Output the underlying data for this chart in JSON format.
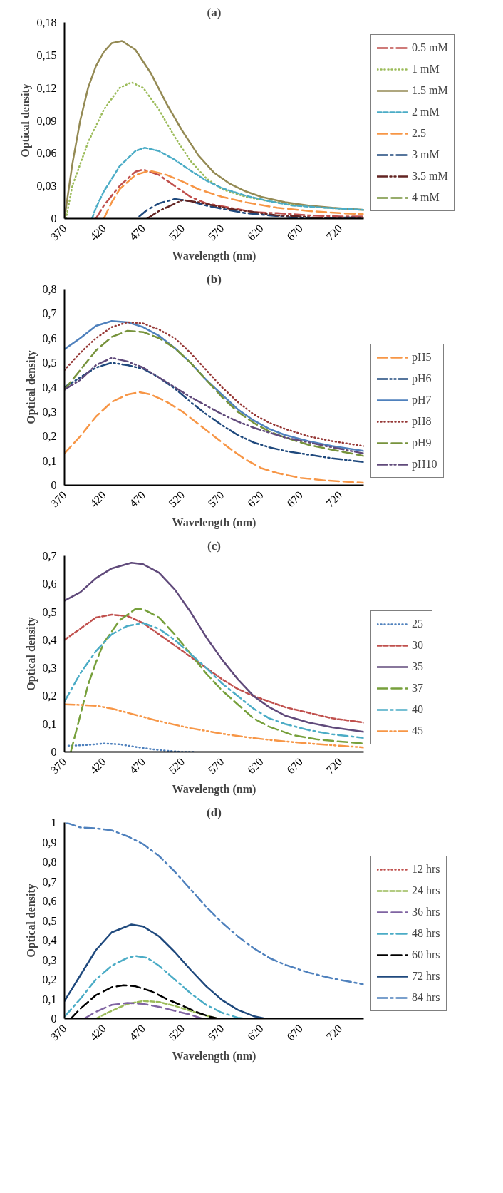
{
  "chart_data": [
    {
      "type": "line",
      "title": "(a)",
      "xlabel": "Wavelength (nm)",
      "ylabel": "Optical density",
      "xlim": [
        370,
        750
      ],
      "xticks": [
        370,
        420,
        470,
        520,
        570,
        620,
        670,
        720
      ],
      "ylim": [
        0,
        0.18
      ],
      "yticks": [
        0,
        {
          "value": 0.03,
          "label": "0,03"
        },
        {
          "value": 0.06,
          "label": "0,06"
        },
        {
          "value": 0.09,
          "label": "0,09"
        },
        {
          "value": 0.12,
          "label": "0,12"
        },
        {
          "value": 0.15,
          "label": "0,15"
        },
        {
          "value": 0.18,
          "label": "0,18"
        }
      ],
      "grid": false,
      "legend": "right",
      "series": [
        {
          "name": "0.5 mM",
          "color": "#c0504d",
          "line_style": "longdashdot",
          "x": [
            410,
            420,
            440,
            460,
            470,
            490,
            510,
            530,
            550,
            580,
            610,
            640,
            680,
            720,
            750
          ],
          "values": [
            0,
            0.012,
            0.03,
            0.043,
            0.045,
            0.04,
            0.03,
            0.02,
            0.014,
            0.01,
            0.006,
            0.005,
            0.003,
            0.002,
            0.002
          ]
        },
        {
          "name": "1 mM",
          "color": "#9bbb59",
          "line_style": "dotted",
          "x": [
            372,
            380,
            400,
            420,
            440,
            455,
            470,
            490,
            510,
            530,
            550,
            570,
            600,
            630,
            660,
            700,
            750
          ],
          "values": [
            0,
            0.03,
            0.07,
            0.1,
            0.12,
            0.125,
            0.12,
            0.1,
            0.075,
            0.053,
            0.037,
            0.027,
            0.02,
            0.016,
            0.013,
            0.01,
            0.008
          ]
        },
        {
          "name": "1.5 mM",
          "color": "#948a54",
          "line_style": "solid",
          "x": [
            370,
            380,
            390,
            400,
            410,
            420,
            430,
            443,
            460,
            480,
            500,
            520,
            540,
            560,
            580,
            600,
            620,
            650,
            680,
            710,
            750
          ],
          "values": [
            0,
            0.05,
            0.09,
            0.12,
            0.14,
            0.153,
            0.161,
            0.163,
            0.155,
            0.133,
            0.105,
            0.08,
            0.058,
            0.042,
            0.032,
            0.025,
            0.02,
            0.015,
            0.012,
            0.01,
            0.008
          ]
        },
        {
          "name": "2 mM",
          "color": "#4bacc6",
          "line_style": "dashed",
          "x": [
            405,
            410,
            420,
            440,
            460,
            472,
            490,
            510,
            530,
            550,
            570,
            600,
            630,
            660,
            700,
            750
          ],
          "values": [
            0,
            0.01,
            0.025,
            0.048,
            0.062,
            0.065,
            0.062,
            0.054,
            0.044,
            0.035,
            0.028,
            0.021,
            0.016,
            0.012,
            0.01,
            0.008
          ]
        },
        {
          "name": "2.5",
          "color": "#f79646",
          "line_style": "longdash",
          "x": [
            420,
            430,
            440,
            460,
            478,
            500,
            520,
            540,
            570,
            600,
            640,
            680,
            720,
            750
          ],
          "values": [
            0,
            0.015,
            0.027,
            0.04,
            0.044,
            0.04,
            0.034,
            0.027,
            0.02,
            0.015,
            0.01,
            0.007,
            0.005,
            0.004
          ]
        },
        {
          "name": "3 mM",
          "color": "#1f497d",
          "line_style": "longdashdot",
          "x": [
            465,
            475,
            490,
            510,
            530,
            550,
            570,
            600,
            630,
            660,
            690,
            720,
            750
          ],
          "values": [
            0.002,
            0.008,
            0.014,
            0.018,
            0.016,
            0.012,
            0.009,
            0.005,
            0.003,
            0.001,
            0,
            0.001,
            0.001
          ]
        },
        {
          "name": "3.5 mM",
          "color": "#632523",
          "line_style": "longdashdotdot",
          "x": [
            475,
            490,
            505,
            520,
            540,
            560,
            580,
            610,
            640,
            670,
            700,
            750
          ],
          "values": [
            0,
            0.007,
            0.012,
            0.017,
            0.015,
            0.012,
            0.009,
            0.006,
            0.003,
            0.002,
            0,
            0
          ]
        },
        {
          "name": "4 mM",
          "color": "#77933c",
          "line_style": "longdash"
        }
      ]
    },
    {
      "type": "line",
      "title": "(b)",
      "xlabel": "Wavelength (nm)",
      "ylabel": "Optical density",
      "xlim": [
        370,
        750
      ],
      "xticks": [
        370,
        420,
        470,
        520,
        570,
        620,
        670,
        720
      ],
      "ylim": [
        0,
        0.8
      ],
      "yticks": [
        0,
        {
          "value": 0.1,
          "label": "0,1"
        },
        {
          "value": 0.2,
          "label": "0,2"
        },
        {
          "value": 0.3,
          "label": "0,3"
        },
        {
          "value": 0.4,
          "label": "0,4"
        },
        {
          "value": 0.5,
          "label": "0,5"
        },
        {
          "value": 0.6,
          "label": "0,6"
        },
        {
          "value": 0.7,
          "label": "0,7"
        },
        {
          "value": 0.8,
          "label": "0,8"
        }
      ],
      "grid": false,
      "legend": "right",
      "x": [
        370,
        390,
        410,
        430,
        450,
        470,
        490,
        510,
        530,
        550,
        570,
        590,
        610,
        630,
        650,
        680,
        710,
        750
      ],
      "series": [
        {
          "name": "pH5",
          "color": "#f79646",
          "line_style": "longdash",
          "x": [
            370,
            390,
            410,
            430,
            450,
            465,
            480,
            500,
            520,
            540,
            560,
            580,
            600,
            620,
            640,
            670,
            700,
            750
          ],
          "values": [
            0.13,
            0.2,
            0.28,
            0.34,
            0.37,
            0.38,
            0.37,
            0.34,
            0.3,
            0.25,
            0.2,
            0.15,
            0.105,
            0.07,
            0.05,
            0.03,
            0.02,
            0.01
          ]
        },
        {
          "name": "pH6",
          "color": "#1f497d",
          "line_style": "longdashdotdot",
          "values": [
            0.4,
            0.44,
            0.48,
            0.5,
            0.49,
            0.475,
            0.44,
            0.395,
            0.34,
            0.29,
            0.245,
            0.205,
            0.175,
            0.155,
            0.14,
            0.125,
            0.11,
            0.095
          ]
        },
        {
          "name": "pH7",
          "color": "#4f81bd",
          "line_style": "solid",
          "values": [
            0.555,
            0.6,
            0.65,
            0.67,
            0.665,
            0.645,
            0.61,
            0.56,
            0.5,
            0.43,
            0.37,
            0.31,
            0.265,
            0.23,
            0.205,
            0.18,
            0.16,
            0.14
          ]
        },
        {
          "name": "pH8",
          "color": "#953735",
          "line_style": "dotted",
          "values": [
            0.47,
            0.54,
            0.6,
            0.645,
            0.665,
            0.66,
            0.635,
            0.6,
            0.54,
            0.47,
            0.4,
            0.34,
            0.29,
            0.255,
            0.23,
            0.2,
            0.18,
            0.16
          ]
        },
        {
          "name": "pH9",
          "color": "#77933c",
          "line_style": "longdash",
          "values": [
            0.39,
            0.47,
            0.55,
            0.605,
            0.63,
            0.625,
            0.6,
            0.56,
            0.5,
            0.43,
            0.36,
            0.3,
            0.255,
            0.22,
            0.195,
            0.165,
            0.145,
            0.12
          ]
        },
        {
          "name": "pH10",
          "color": "#604a7b",
          "line_style": "longdashdotdot",
          "values": [
            0.39,
            0.43,
            0.49,
            0.52,
            0.505,
            0.48,
            0.44,
            0.4,
            0.36,
            0.325,
            0.29,
            0.26,
            0.235,
            0.215,
            0.195,
            0.175,
            0.155,
            0.13
          ]
        }
      ]
    },
    {
      "type": "line",
      "title": "(c)",
      "xlabel": "Wavelength (nm)",
      "ylabel": "Optical density",
      "xlim": [
        370,
        750
      ],
      "xticks": [
        370,
        420,
        470,
        520,
        570,
        620,
        670,
        720
      ],
      "ylim": [
        0,
        0.7
      ],
      "yticks": [
        0,
        {
          "value": 0.1,
          "label": "0,1"
        },
        {
          "value": 0.2,
          "label": "0,2"
        },
        {
          "value": 0.3,
          "label": "0,3"
        },
        {
          "value": 0.4,
          "label": "0,4"
        },
        {
          "value": 0.5,
          "label": "0,5"
        },
        {
          "value": 0.6,
          "label": "0,6"
        },
        {
          "value": 0.7,
          "label": "0,7"
        }
      ],
      "grid": false,
      "legend": "right",
      "series": [
        {
          "name": "25",
          "color": "#4f81bd",
          "line_style": "dotted",
          "x": [
            375,
            400,
            420,
            440,
            460,
            480,
            500,
            520,
            535
          ],
          "values": [
            0.022,
            0.025,
            0.03,
            0.027,
            0.018,
            0.01,
            0.004,
            0,
            0
          ]
        },
        {
          "name": "30",
          "color": "#c0504d",
          "line_style": "dashed",
          "x": [
            370,
            390,
            410,
            430,
            450,
            470,
            490,
            510,
            530,
            550,
            570,
            590,
            610,
            630,
            650,
            680,
            710,
            750
          ],
          "values": [
            0.4,
            0.44,
            0.48,
            0.49,
            0.485,
            0.46,
            0.42,
            0.38,
            0.34,
            0.3,
            0.26,
            0.225,
            0.2,
            0.18,
            0.16,
            0.14,
            0.12,
            0.105
          ]
        },
        {
          "name": "35",
          "color": "#604a7b",
          "line_style": "solid",
          "x": [
            370,
            390,
            410,
            430,
            455,
            470,
            490,
            510,
            530,
            550,
            570,
            590,
            610,
            630,
            650,
            680,
            710,
            750
          ],
          "values": [
            0.54,
            0.57,
            0.62,
            0.655,
            0.675,
            0.67,
            0.64,
            0.58,
            0.5,
            0.41,
            0.33,
            0.26,
            0.2,
            0.16,
            0.13,
            0.105,
            0.088,
            0.072
          ]
        },
        {
          "name": "37",
          "color": "#77a03c",
          "line_style": "longdash",
          "x": [
            378,
            390,
            400,
            410,
            420,
            440,
            460,
            470,
            490,
            510,
            530,
            550,
            570,
            590,
            610,
            630,
            660,
            690,
            720,
            750
          ],
          "values": [
            0,
            0.13,
            0.24,
            0.32,
            0.39,
            0.47,
            0.51,
            0.51,
            0.48,
            0.42,
            0.35,
            0.28,
            0.22,
            0.17,
            0.12,
            0.09,
            0.06,
            0.045,
            0.037,
            0.03
          ]
        },
        {
          "name": "40",
          "color": "#4bacc6",
          "line_style": "longdashdot",
          "x": [
            370,
            390,
            410,
            430,
            450,
            470,
            490,
            510,
            530,
            550,
            570,
            590,
            610,
            630,
            650,
            680,
            710,
            750
          ],
          "values": [
            0.18,
            0.28,
            0.36,
            0.42,
            0.45,
            0.46,
            0.44,
            0.4,
            0.35,
            0.3,
            0.245,
            0.2,
            0.155,
            0.12,
            0.1,
            0.078,
            0.063,
            0.05
          ]
        },
        {
          "name": "45",
          "color": "#f79646",
          "line_style": "longdashdotdot",
          "x": [
            370,
            390,
            410,
            430,
            450,
            470,
            490,
            510,
            530,
            550,
            570,
            600,
            630,
            660,
            690,
            720,
            750
          ],
          "values": [
            0.17,
            0.168,
            0.165,
            0.155,
            0.14,
            0.125,
            0.11,
            0.097,
            0.085,
            0.075,
            0.065,
            0.053,
            0.043,
            0.035,
            0.028,
            0.022,
            0.016
          ]
        }
      ]
    },
    {
      "type": "line",
      "title": "(d)",
      "xlabel": "Wavelength (nm)",
      "ylabel": "Optical density",
      "xlim": [
        370,
        750
      ],
      "xticks": [
        370,
        420,
        470,
        520,
        570,
        620,
        670,
        720
      ],
      "ylim": [
        0,
        1
      ],
      "yticks": [
        0,
        {
          "value": 0.1,
          "label": "0,1"
        },
        {
          "value": 0.2,
          "label": "0,2"
        },
        {
          "value": 0.3,
          "label": "0,3"
        },
        {
          "value": 0.4,
          "label": "0,4"
        },
        {
          "value": 0.5,
          "label": "0,5"
        },
        {
          "value": 0.6,
          "label": "0,6"
        },
        {
          "value": 0.7,
          "label": "0,7"
        },
        {
          "value": 0.8,
          "label": "0,8"
        },
        {
          "value": 0.9,
          "label": "0,9"
        },
        1
      ],
      "grid": false,
      "legend": "right",
      "series": [
        {
          "name": "12 hrs",
          "color": "#c0504d",
          "line_style": "dotted"
        },
        {
          "name": "24 hrs",
          "color": "#9bbb59",
          "line_style": "dashed",
          "x": [
            410,
            430,
            450,
            470,
            490,
            510,
            530,
            550,
            565
          ],
          "values": [
            0,
            0.04,
            0.075,
            0.09,
            0.085,
            0.065,
            0.04,
            0.015,
            0
          ]
        },
        {
          "name": "36 hrs",
          "color": "#8064a2",
          "line_style": "longdash",
          "x": [
            395,
            410,
            430,
            450,
            470,
            490,
            510,
            530,
            545
          ],
          "values": [
            0,
            0.035,
            0.07,
            0.08,
            0.075,
            0.06,
            0.04,
            0.02,
            0
          ]
        },
        {
          "name": "48 hrs",
          "color": "#4bacc6",
          "line_style": "longdashdot",
          "x": [
            370,
            390,
            410,
            430,
            450,
            460,
            475,
            490,
            510,
            530,
            550,
            570,
            590,
            600
          ],
          "values": [
            0.01,
            0.1,
            0.2,
            0.27,
            0.31,
            0.32,
            0.31,
            0.27,
            0.2,
            0.13,
            0.07,
            0.03,
            0.005,
            0
          ]
        },
        {
          "name": "60 hrs",
          "color": "#000000",
          "line_style": "longdash",
          "x": [
            378,
            390,
            410,
            430,
            445,
            460,
            480,
            500,
            520,
            540,
            555,
            565
          ],
          "values": [
            0,
            0.05,
            0.12,
            0.16,
            0.17,
            0.165,
            0.14,
            0.1,
            0.065,
            0.03,
            0.01,
            0
          ]
        },
        {
          "name": "72 hrs",
          "color": "#1f497d",
          "line_style": "solid",
          "x": [
            370,
            390,
            410,
            430,
            455,
            470,
            490,
            510,
            530,
            550,
            570,
            590,
            610,
            625,
            635
          ],
          "values": [
            0.09,
            0.22,
            0.35,
            0.44,
            0.48,
            0.47,
            0.42,
            0.34,
            0.25,
            0.165,
            0.095,
            0.045,
            0.013,
            0,
            0
          ]
        },
        {
          "name": "84 hrs",
          "color": "#4f81bd",
          "line_style": "longdashdot",
          "x": [
            372,
            390,
            410,
            430,
            450,
            470,
            490,
            510,
            530,
            550,
            570,
            590,
            610,
            630,
            650,
            680,
            710,
            750
          ],
          "values": [
            1.0,
            0.975,
            0.97,
            0.96,
            0.93,
            0.89,
            0.83,
            0.75,
            0.66,
            0.57,
            0.49,
            0.42,
            0.36,
            0.31,
            0.275,
            0.235,
            0.205,
            0.175
          ]
        }
      ]
    }
  ]
}
